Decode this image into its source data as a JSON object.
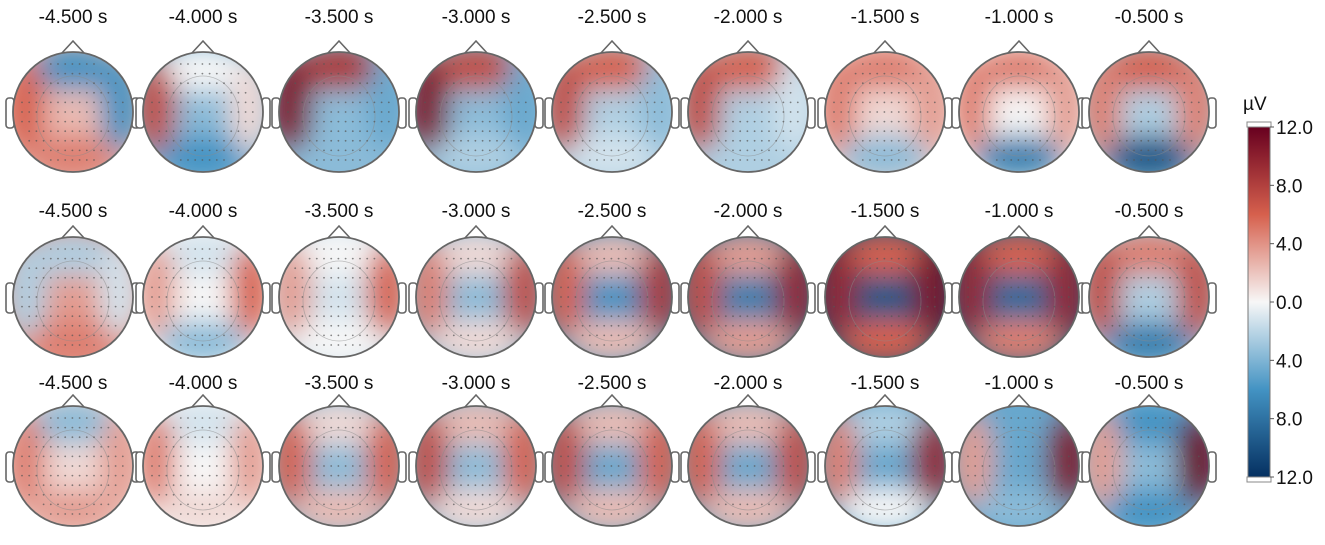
{
  "chart_data": {
    "type": "heatmap",
    "subtype": "eeg-scalp-topomap-grid",
    "time_labels": [
      "-4.500 s",
      "-4.000 s",
      "-3.500 s",
      "-3.000 s",
      "-2.500 s",
      "-2.000 s",
      "-1.500 s",
      "-1.000 s",
      "-0.500 s"
    ],
    "rows": [
      {
        "maps": [
          {
            "front": -0.5,
            "left": 0.5,
            "right": -0.5,
            "center": 0.2,
            "back": 0.4
          },
          {
            "front": 0.0,
            "left": 0.6,
            "right": 0.1,
            "center": -0.3,
            "back": -0.5
          },
          {
            "front": 0.7,
            "left": 0.9,
            "right": -0.4,
            "center": -0.3,
            "back": -0.3
          },
          {
            "front": 0.6,
            "left": 0.9,
            "right": -0.4,
            "center": -0.3,
            "back": -0.2
          },
          {
            "front": 0.5,
            "left": 0.6,
            "right": -0.3,
            "center": -0.2,
            "back": -0.1
          },
          {
            "front": 0.5,
            "left": 0.6,
            "right": -0.1,
            "center": -0.2,
            "back": -0.2
          },
          {
            "front": 0.4,
            "left": 0.4,
            "right": 0.3,
            "center": 0.1,
            "back": -0.3
          },
          {
            "front": 0.4,
            "left": 0.4,
            "right": 0.3,
            "center": 0.0,
            "back": -0.6
          },
          {
            "front": 0.5,
            "left": 0.4,
            "right": 0.4,
            "center": -0.2,
            "back": -0.8
          }
        ]
      },
      {
        "maps": [
          {
            "front": -0.2,
            "left": -0.2,
            "right": -0.1,
            "center": 0.3,
            "back": 0.4
          },
          {
            "front": -0.1,
            "left": 0.3,
            "right": 0.5,
            "center": 0.0,
            "back": -0.3
          },
          {
            "front": 0.0,
            "left": 0.3,
            "right": 0.5,
            "center": -0.1,
            "back": 0.0
          },
          {
            "front": 0.1,
            "left": 0.4,
            "right": 0.6,
            "center": -0.3,
            "back": 0.1
          },
          {
            "front": 0.2,
            "left": 0.5,
            "right": 0.7,
            "center": -0.5,
            "back": 0.2
          },
          {
            "front": 0.3,
            "left": 0.6,
            "right": 0.8,
            "center": -0.6,
            "back": 0.3
          },
          {
            "front": 0.5,
            "left": 0.8,
            "right": 0.9,
            "center": -0.8,
            "back": 0.5
          },
          {
            "front": 0.5,
            "left": 0.8,
            "right": 0.8,
            "center": -0.7,
            "back": 0.4
          },
          {
            "front": 0.4,
            "left": 0.6,
            "right": 0.6,
            "center": -0.2,
            "back": -0.6
          }
        ]
      },
      {
        "maps": [
          {
            "front": -0.3,
            "left": 0.4,
            "right": 0.3,
            "center": 0.1,
            "back": 0.3
          },
          {
            "front": -0.1,
            "left": 0.4,
            "right": 0.3,
            "center": 0.0,
            "back": 0.1
          },
          {
            "front": 0.1,
            "left": 0.5,
            "right": 0.5,
            "center": -0.3,
            "back": 0.2
          },
          {
            "front": 0.2,
            "left": 0.6,
            "right": 0.5,
            "center": -0.3,
            "back": 0.1
          },
          {
            "front": 0.2,
            "left": 0.6,
            "right": 0.5,
            "center": -0.4,
            "back": 0.2
          },
          {
            "front": 0.2,
            "left": 0.5,
            "right": 0.6,
            "center": -0.4,
            "back": 0.2
          },
          {
            "front": -0.2,
            "left": 0.4,
            "right": 0.8,
            "center": -0.4,
            "back": 0.0
          },
          {
            "front": -0.4,
            "left": 0.3,
            "right": 0.9,
            "center": -0.4,
            "back": -0.3
          },
          {
            "front": -0.5,
            "left": 0.3,
            "right": 1.0,
            "center": -0.3,
            "back": -0.5
          }
        ]
      }
    ],
    "colorbar": {
      "unit": "µV",
      "tick_labels": [
        "12.0",
        "8.0",
        "4.0",
        "0.0",
        "4.0",
        "8.0",
        "12.0"
      ],
      "range": [
        -12.0,
        12.0
      ],
      "colormap": "RdBu_r",
      "colors": {
        "max": "#67001f",
        "high": "#d6604d",
        "mid": "#f7f7f7",
        "low": "#4393c3",
        "min": "#053061"
      }
    }
  }
}
